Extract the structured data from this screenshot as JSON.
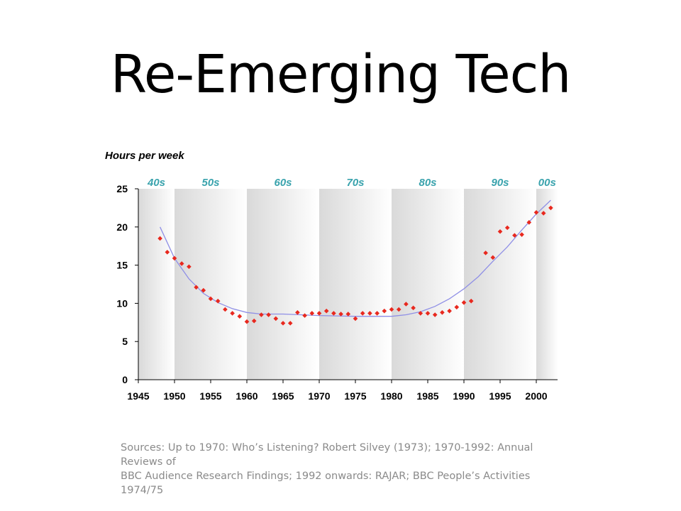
{
  "slide": {
    "title": "Re-Emerging Tech"
  },
  "sources": {
    "line1": "Sources: Up to 1970: Who’s Listening? Robert Silvey (1973); 1970-1992: Annual Reviews of",
    "line2": "BBC Audience Research Findings; 1992 onwards: RAJAR; BBC People’s Activities 1974/75"
  },
  "colors": {
    "points": "#e8281e",
    "trend": "#8f8fe6",
    "decade_label": "#3aa3ad",
    "band_gray": "#d9d9d9"
  },
  "chart_data": {
    "type": "scatter",
    "title": "",
    "ylabel": "Hours per week",
    "xlabel": "",
    "xlim": [
      1945,
      2003
    ],
    "ylim": [
      0,
      25
    ],
    "x_ticks": [
      1945,
      1950,
      1955,
      1960,
      1965,
      1970,
      1975,
      1980,
      1985,
      1990,
      1995,
      2000
    ],
    "y_ticks": [
      0,
      5,
      10,
      15,
      20,
      25
    ],
    "grid": false,
    "decades": [
      {
        "label": "40s",
        "range": [
          1945,
          1950
        ]
      },
      {
        "label": "50s",
        "range": [
          1950,
          1960
        ]
      },
      {
        "label": "60s",
        "range": [
          1960,
          1970
        ]
      },
      {
        "label": "70s",
        "range": [
          1970,
          1980
        ]
      },
      {
        "label": "80s",
        "range": [
          1980,
          1990
        ]
      },
      {
        "label": "90s",
        "range": [
          1990,
          2000
        ]
      },
      {
        "label": "00s",
        "range": [
          2000,
          2003
        ]
      }
    ],
    "series": [
      {
        "kind": "points",
        "x": [
          1948,
          1949,
          1950,
          1951,
          1952,
          1953,
          1954,
          1955,
          1956,
          1957,
          1958,
          1959,
          1960,
          1961,
          1962,
          1963,
          1964,
          1965,
          1966,
          1967,
          1968,
          1969,
          1970,
          1971,
          1972,
          1973,
          1974,
          1975,
          1976,
          1977,
          1978,
          1979,
          1980,
          1981,
          1982,
          1983,
          1984,
          1985,
          1986,
          1987,
          1988,
          1989,
          1990,
          1991,
          1993,
          1994,
          1995,
          1996,
          1997,
          1998,
          1999,
          2000,
          2001,
          2002
        ],
        "y": [
          18.5,
          16.7,
          15.9,
          15.2,
          14.8,
          12.1,
          11.7,
          10.6,
          10.3,
          9.2,
          8.7,
          8.3,
          7.6,
          7.7,
          8.5,
          8.5,
          8.0,
          7.4,
          7.4,
          8.8,
          8.4,
          8.7,
          8.7,
          9.0,
          8.7,
          8.6,
          8.6,
          8.0,
          8.7,
          8.7,
          8.7,
          9.0,
          9.2,
          9.2,
          9.9,
          9.4,
          8.7,
          8.7,
          8.5,
          8.8,
          9.0,
          9.5,
          10.1,
          10.3,
          16.6,
          16.0,
          19.4,
          19.9,
          18.9,
          19.0,
          20.6,
          21.9,
          21.8,
          22.5
        ]
      },
      {
        "kind": "line",
        "x": [
          1948,
          1950,
          1952,
          1954,
          1956,
          1958,
          1960,
          1962,
          1965,
          1970,
          1975,
          1980,
          1982,
          1984,
          1986,
          1988,
          1990,
          1992,
          1994,
          1996,
          1998,
          2000,
          2002
        ],
        "y": [
          20.0,
          15.9,
          13.2,
          11.3,
          10.1,
          9.3,
          8.8,
          8.6,
          8.6,
          8.4,
          8.3,
          8.3,
          8.5,
          8.9,
          9.6,
          10.6,
          11.9,
          13.5,
          15.5,
          17.4,
          19.6,
          21.7,
          23.5
        ]
      }
    ]
  }
}
